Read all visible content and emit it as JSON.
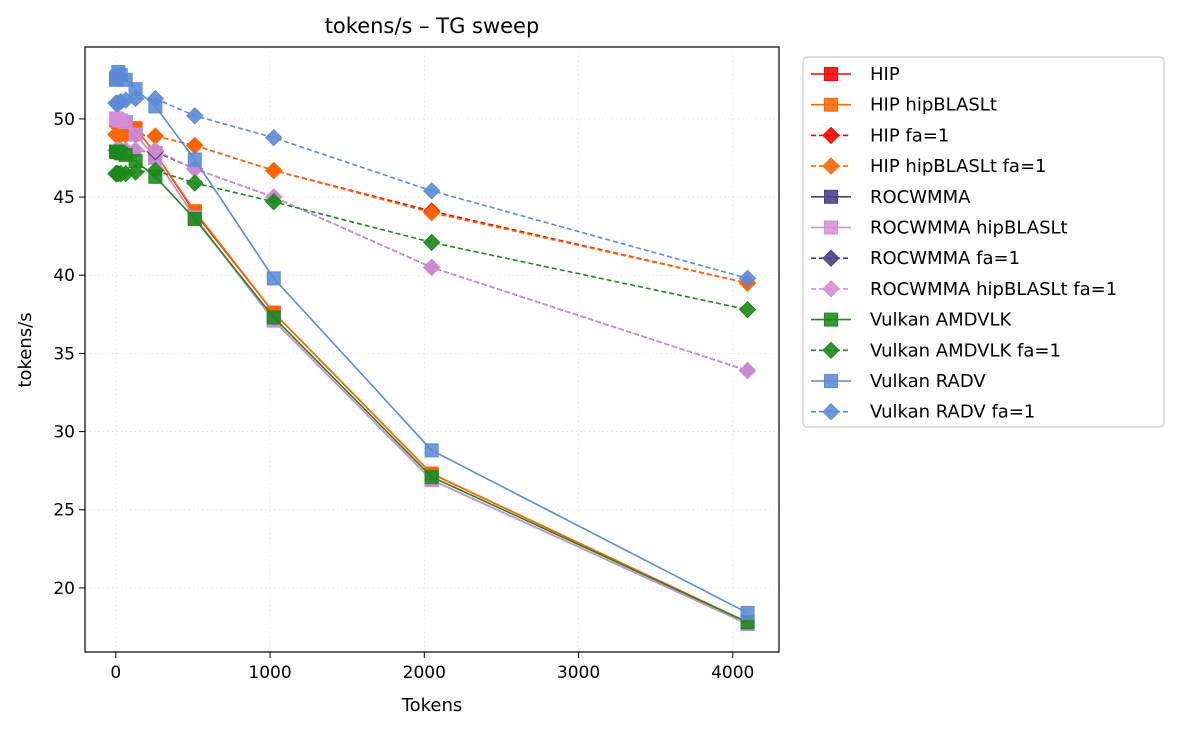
{
  "chart_data": {
    "type": "line",
    "title": "tokens/s – TG sweep",
    "xlabel": "Tokens",
    "ylabel": "tokens/s",
    "xlim": [
      -200,
      4300
    ],
    "ylim": [
      15.9,
      54.6
    ],
    "xticks": [
      0,
      1000,
      2000,
      3000,
      4000
    ],
    "yticks": [
      20,
      25,
      30,
      35,
      40,
      45,
      50
    ],
    "grid": true,
    "legend_position": "outside-right",
    "x": [
      1,
      2,
      4,
      8,
      16,
      32,
      64,
      128,
      256,
      512,
      1024,
      2048,
      4096
    ],
    "series": [
      {
        "name": "HIP",
        "color": "#ff0000",
        "marker": "square",
        "dashed": false,
        "values": [
          49.9,
          49.9,
          49.9,
          49.9,
          49.8,
          49.8,
          49.8,
          49.4,
          47.8,
          44.0,
          37.6,
          27.3,
          17.8
        ]
      },
      {
        "name": "HIP hipBLASLt",
        "color": "#ff6a00",
        "marker": "square",
        "dashed": false,
        "values": [
          49.9,
          49.9,
          49.9,
          49.9,
          49.8,
          49.8,
          49.8,
          49.4,
          47.8,
          44.1,
          37.6,
          27.3,
          17.8
        ]
      },
      {
        "name": "HIP fa=1",
        "color": "#ff0000",
        "marker": "diamond",
        "dashed": true,
        "values": [
          49.0,
          49.0,
          49.0,
          49.0,
          49.0,
          49.0,
          49.0,
          49.0,
          48.9,
          48.3,
          46.7,
          44.1,
          39.5
        ]
      },
      {
        "name": "HIP hipBLASLt fa=1",
        "color": "#ff6a00",
        "marker": "diamond",
        "dashed": true,
        "values": [
          49.0,
          49.0,
          49.0,
          49.0,
          49.0,
          49.0,
          49.0,
          49.0,
          48.9,
          48.3,
          46.7,
          44.0,
          39.5
        ]
      },
      {
        "name": "ROCWMMA",
        "color": "#4b3c8c",
        "marker": "square",
        "dashed": false,
        "values": [
          50.0,
          50.0,
          50.0,
          50.0,
          49.9,
          49.9,
          49.8,
          49.0,
          47.5,
          43.7,
          37.1,
          26.9,
          17.7
        ]
      },
      {
        "name": "ROCWMMA hipBLASLt",
        "color": "#d68fd6",
        "marker": "square",
        "dashed": false,
        "values": [
          50.0,
          50.0,
          50.0,
          50.0,
          49.9,
          49.9,
          49.8,
          49.0,
          47.5,
          43.7,
          37.1,
          26.9,
          17.7
        ]
      },
      {
        "name": "ROCWMMA fa=1",
        "color": "#4b3c8c",
        "marker": "diamond",
        "dashed": true,
        "values": [
          48.0,
          48.0,
          48.0,
          48.0,
          48.0,
          48.0,
          48.0,
          48.0,
          47.9,
          46.8,
          45.0,
          40.5,
          33.9
        ]
      },
      {
        "name": "ROCWMMA hipBLASLt fa=1",
        "color": "#d68fd6",
        "marker": "diamond",
        "dashed": true,
        "values": [
          48.0,
          48.0,
          48.0,
          48.0,
          48.0,
          48.0,
          48.0,
          48.0,
          48.0,
          46.8,
          45.0,
          40.5,
          33.9
        ]
      },
      {
        "name": "Vulkan AMDVLK",
        "color": "#1a8a1a",
        "marker": "square",
        "dashed": false,
        "values": [
          47.9,
          47.9,
          47.9,
          47.9,
          47.9,
          47.8,
          47.7,
          47.3,
          46.3,
          43.6,
          37.3,
          27.1,
          17.8
        ]
      },
      {
        "name": "Vulkan AMDVLK fa=1",
        "color": "#1a8a1a",
        "marker": "diamond",
        "dashed": true,
        "values": [
          46.5,
          46.5,
          46.5,
          46.5,
          46.5,
          46.5,
          46.5,
          46.6,
          46.7,
          45.9,
          44.7,
          42.1,
          37.8
        ]
      },
      {
        "name": "Vulkan RADV",
        "color": "#5b8bd6",
        "marker": "square",
        "dashed": false,
        "values": [
          52.5,
          52.6,
          52.6,
          52.7,
          53.0,
          52.8,
          52.5,
          51.9,
          50.8,
          47.4,
          39.8,
          28.8,
          18.4
        ]
      },
      {
        "name": "Vulkan RADV fa=1",
        "color": "#5b8bd6",
        "marker": "diamond",
        "dashed": true,
        "values": [
          51.0,
          51.0,
          51.0,
          51.0,
          51.0,
          51.1,
          51.2,
          51.3,
          51.3,
          50.2,
          48.8,
          45.4,
          39.8
        ]
      }
    ]
  }
}
